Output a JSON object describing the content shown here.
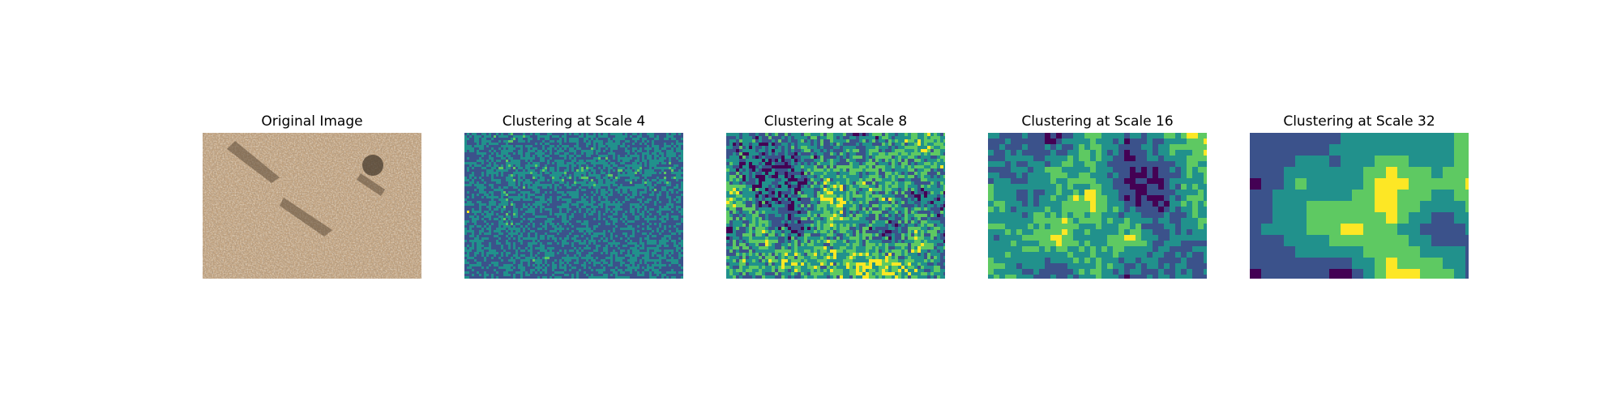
{
  "panels": [
    {
      "title": "Original Image",
      "kind": "photo"
    },
    {
      "title": "Clustering at Scale 4",
      "kind": "clusters",
      "scale": 4
    },
    {
      "title": "Clustering at Scale 8",
      "kind": "clusters",
      "scale": 8
    },
    {
      "title": "Clustering at Scale 16",
      "kind": "clusters",
      "scale": 16
    },
    {
      "title": "Clustering at Scale 32",
      "kind": "clusters",
      "scale": 32
    }
  ],
  "colors": {
    "cluster_palette": [
      "#440154",
      "#3b528b",
      "#21918c",
      "#5ec962",
      "#fde725"
    ],
    "photo_base": "#c2a27e",
    "photo_shadow": "#5e4c39",
    "photo_light": "#dcc6a6"
  }
}
